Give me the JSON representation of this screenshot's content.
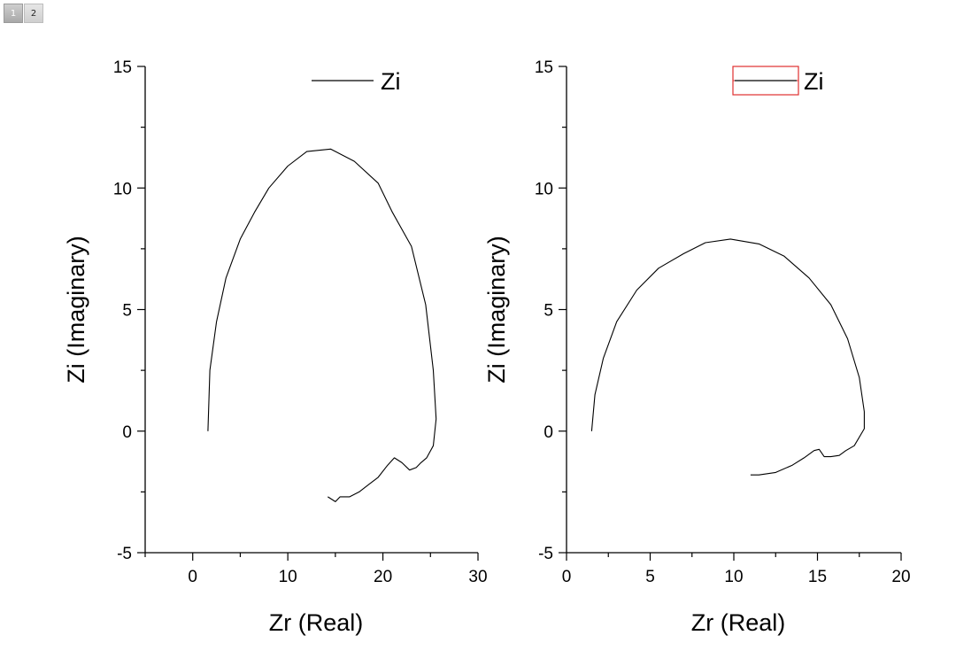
{
  "tabs": [
    {
      "label": "1",
      "active": true
    },
    {
      "label": "2",
      "active": false
    }
  ],
  "chart_data": [
    {
      "type": "line",
      "xlabel": "Zr (Real)",
      "ylabel": "Zi (Imaginary)",
      "xlim": [
        -5,
        30
      ],
      "ylim": [
        -5,
        15
      ],
      "xticks": [
        0,
        10,
        20,
        30
      ],
      "yticks": [
        -5,
        0,
        5,
        10,
        15
      ],
      "x_tick_labels": [
        "0",
        "10",
        "20",
        "30"
      ],
      "y_tick_labels": [
        "-5",
        "0",
        "5",
        "10",
        "15"
      ],
      "legend": {
        "position": "top-right",
        "highlighted": false
      },
      "series": [
        {
          "name": "Zi",
          "color": "#000000",
          "points": [
            [
              1.6,
              0
            ],
            [
              1.8,
              2.5
            ],
            [
              2.5,
              4.5
            ],
            [
              3.5,
              6.3
            ],
            [
              5,
              7.9
            ],
            [
              6.5,
              9.0
            ],
            [
              8,
              10.0
            ],
            [
              10,
              10.9
            ],
            [
              12,
              11.5
            ],
            [
              14.5,
              11.6
            ],
            [
              17,
              11.1
            ],
            [
              19.5,
              10.2
            ],
            [
              21,
              9.0
            ],
            [
              23,
              7.6
            ],
            [
              24.5,
              5.2
            ],
            [
              25.3,
              2.5
            ],
            [
              25.6,
              0.5
            ],
            [
              25.3,
              -0.6
            ],
            [
              24.6,
              -1.1
            ],
            [
              24.0,
              -1.3
            ],
            [
              23.5,
              -1.5
            ],
            [
              22.8,
              -1.6
            ],
            [
              22.0,
              -1.3
            ],
            [
              21.2,
              -1.1
            ],
            [
              20.5,
              -1.4
            ],
            [
              19.5,
              -1.9
            ],
            [
              18.5,
              -2.2
            ],
            [
              17.5,
              -2.5
            ],
            [
              16.5,
              -2.7
            ],
            [
              15.5,
              -2.7
            ],
            [
              15.0,
              -2.9
            ],
            [
              14.2,
              -2.7
            ]
          ]
        }
      ]
    },
    {
      "type": "line",
      "xlabel": "Zr (Real)",
      "ylabel": "Zi (Imaginary)",
      "xlim": [
        0,
        20
      ],
      "ylim": [
        -5,
        15
      ],
      "xticks": [
        0,
        5,
        10,
        15,
        20
      ],
      "yticks": [
        -5,
        0,
        5,
        10,
        15
      ],
      "x_tick_labels": [
        "0",
        "5",
        "10",
        "15",
        "20"
      ],
      "y_tick_labels": [
        "-5",
        "0",
        "5",
        "10",
        "15"
      ],
      "legend": {
        "position": "top-right",
        "highlighted": true,
        "highlight_color": "#e03030"
      },
      "series": [
        {
          "name": "Zi",
          "color": "#000000",
          "points": [
            [
              1.5,
              0
            ],
            [
              1.7,
              1.5
            ],
            [
              2.2,
              3.0
            ],
            [
              3.0,
              4.5
            ],
            [
              4.2,
              5.8
            ],
            [
              5.5,
              6.7
            ],
            [
              7.0,
              7.3
            ],
            [
              8.3,
              7.75
            ],
            [
              9.8,
              7.9
            ],
            [
              11.5,
              7.7
            ],
            [
              13.0,
              7.2
            ],
            [
              14.5,
              6.3
            ],
            [
              15.8,
              5.2
            ],
            [
              16.8,
              3.8
            ],
            [
              17.5,
              2.2
            ],
            [
              17.8,
              0.8
            ],
            [
              17.8,
              0.1
            ],
            [
              17.2,
              -0.6
            ],
            [
              16.7,
              -0.8
            ],
            [
              16.3,
              -1.0
            ],
            [
              15.8,
              -1.05
            ],
            [
              15.4,
              -1.05
            ],
            [
              15.1,
              -0.75
            ],
            [
              14.8,
              -0.8
            ],
            [
              14.2,
              -1.1
            ],
            [
              13.5,
              -1.4
            ],
            [
              12.5,
              -1.7
            ],
            [
              11.5,
              -1.8
            ],
            [
              11.0,
              -1.8
            ]
          ]
        }
      ]
    }
  ]
}
